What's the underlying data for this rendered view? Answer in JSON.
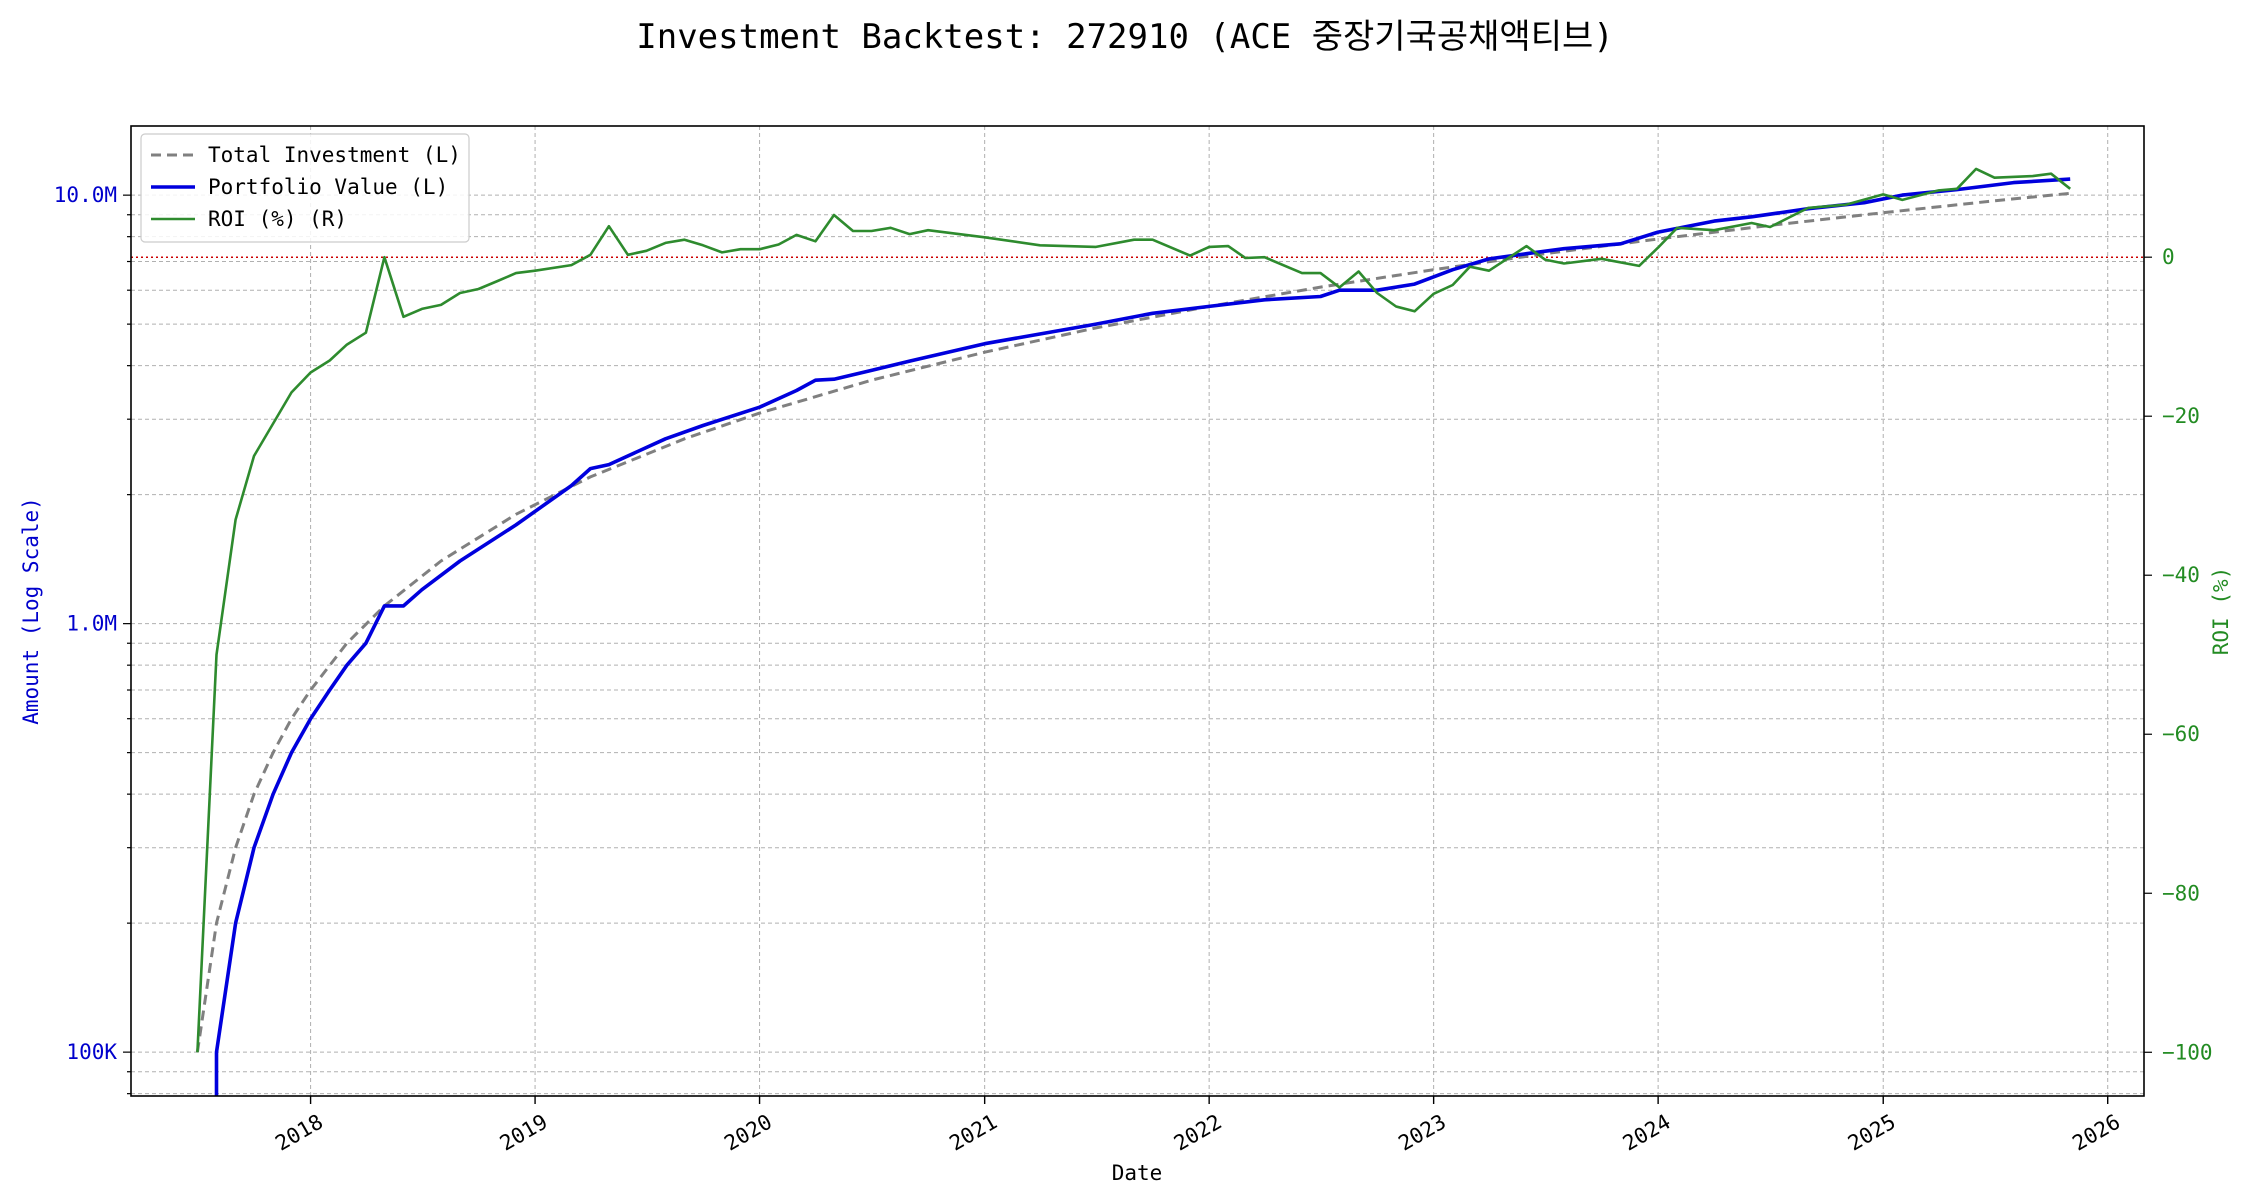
{
  "chart_data": {
    "type": "line",
    "title": "Investment Backtest: 272910 (ACE 중장기국공채액티브)",
    "xlabel": "Date",
    "ylabel_left": "Amount (Log Scale)",
    "ylabel_right": "ROI (%)",
    "left_scale": "log",
    "xlim": [
      "2017-03-15",
      "2026-03-01"
    ],
    "ylim_left": [
      79000,
      14500000
    ],
    "ylim_right": [
      -105.5,
      16.5
    ],
    "x_ticks": [
      "2018",
      "2019",
      "2020",
      "2021",
      "2022",
      "2023",
      "2024",
      "2025",
      "2026"
    ],
    "y_ticks_left": [
      {
        "value": 100000,
        "label": "100K"
      },
      {
        "value": 1000000,
        "label": "1.0M"
      },
      {
        "value": 10000000,
        "label": "10.0M"
      }
    ],
    "y_ticks_right": [
      0,
      -20,
      -40,
      -60,
      -80,
      -100
    ],
    "grid": true,
    "legend_position": "top-left",
    "colors": {
      "total_investment": "#808080",
      "portfolio_value": "#0000dd",
      "roi": "#2e8b2e",
      "zero_line": "#cc0000",
      "left_axis": "#0000cc",
      "right_axis": "#228b22"
    },
    "legend": [
      "Total Investment (L)",
      "Portfolio Value (L)",
      "ROI (%) (R)"
    ],
    "series": [
      {
        "name": "Total Investment (L)",
        "axis": "left",
        "style": "dashed",
        "points": [
          [
            "2017-07-01",
            100000
          ],
          [
            "2017-08-01",
            200000
          ],
          [
            "2017-09-01",
            300000
          ],
          [
            "2017-10-01",
            400000
          ],
          [
            "2017-11-01",
            500000
          ],
          [
            "2017-12-01",
            600000
          ],
          [
            "2018-01-01",
            700000
          ],
          [
            "2018-03-01",
            900000
          ],
          [
            "2018-05-01",
            1100000
          ],
          [
            "2018-08-01",
            1400000
          ],
          [
            "2018-12-01",
            1800000
          ],
          [
            "2019-04-01",
            2200000
          ],
          [
            "2019-09-01",
            2700000
          ],
          [
            "2020-01-01",
            3100000
          ],
          [
            "2020-07-01",
            3700000
          ],
          [
            "2021-01-01",
            4300000
          ],
          [
            "2021-07-01",
            4900000
          ],
          [
            "2022-01-01",
            5500000
          ],
          [
            "2022-07-01",
            6100000
          ],
          [
            "2023-01-01",
            6700000
          ],
          [
            "2023-07-01",
            7300000
          ],
          [
            "2024-01-01",
            7900000
          ],
          [
            "2024-07-01",
            8500000
          ],
          [
            "2025-01-01",
            9100000
          ],
          [
            "2025-07-01",
            9700000
          ],
          [
            "2025-11-01",
            10100000
          ]
        ]
      },
      {
        "name": "Portfolio Value (L)",
        "axis": "left",
        "style": "solid",
        "points": [
          [
            "2017-08-01",
            50000
          ],
          [
            "2017-08-01",
            100000
          ],
          [
            "2017-09-01",
            200000
          ],
          [
            "2017-10-01",
            300000
          ],
          [
            "2017-11-01",
            400000
          ],
          [
            "2017-12-01",
            500000
          ],
          [
            "2018-01-01",
            600000
          ],
          [
            "2018-02-01",
            700000
          ],
          [
            "2018-03-01",
            800000
          ],
          [
            "2018-04-01",
            900000
          ],
          [
            "2018-05-01",
            1100000
          ],
          [
            "2018-06-01",
            1100000
          ],
          [
            "2018-07-01",
            1200000
          ],
          [
            "2018-09-01",
            1400000
          ],
          [
            "2018-12-01",
            1700000
          ],
          [
            "2019-03-01",
            2100000
          ],
          [
            "2019-04-01",
            2300000
          ],
          [
            "2019-05-01",
            2350000
          ],
          [
            "2019-08-01",
            2700000
          ],
          [
            "2019-10-01",
            2900000
          ],
          [
            "2020-01-01",
            3200000
          ],
          [
            "2020-03-01",
            3500000
          ],
          [
            "2020-04-01",
            3700000
          ],
          [
            "2020-05-01",
            3720000
          ],
          [
            "2020-07-01",
            3900000
          ],
          [
            "2020-09-01",
            4100000
          ],
          [
            "2021-01-01",
            4500000
          ],
          [
            "2021-07-01",
            5000000
          ],
          [
            "2021-10-01",
            5300000
          ],
          [
            "2022-01-01",
            5500000
          ],
          [
            "2022-04-01",
            5700000
          ],
          [
            "2022-07-01",
            5800000
          ],
          [
            "2022-08-01",
            6000000
          ],
          [
            "2022-10-01",
            6000000
          ],
          [
            "2022-12-01",
            6200000
          ],
          [
            "2023-02-01",
            6700000
          ],
          [
            "2023-04-01",
            7100000
          ],
          [
            "2023-06-01",
            7300000
          ],
          [
            "2023-08-01",
            7500000
          ],
          [
            "2023-11-01",
            7700000
          ],
          [
            "2024-01-01",
            8200000
          ],
          [
            "2024-04-01",
            8700000
          ],
          [
            "2024-06-01",
            8900000
          ],
          [
            "2024-09-01",
            9300000
          ],
          [
            "2024-12-01",
            9600000
          ],
          [
            "2025-02-01",
            10000000
          ],
          [
            "2025-05-01",
            10300000
          ],
          [
            "2025-08-01",
            10700000
          ],
          [
            "2025-11-01",
            10900000
          ]
        ]
      },
      {
        "name": "ROI (%) (R)",
        "axis": "right",
        "style": "solid",
        "points": [
          [
            "2017-07-01",
            -100
          ],
          [
            "2017-08-01",
            -50
          ],
          [
            "2017-09-01",
            -33
          ],
          [
            "2017-10-01",
            -25
          ],
          [
            "2017-12-01",
            -17
          ],
          [
            "2018-01-01",
            -14.5
          ],
          [
            "2018-02-01",
            -13
          ],
          [
            "2018-03-01",
            -11
          ],
          [
            "2018-04-01",
            -9.5
          ],
          [
            "2018-05-01",
            0
          ],
          [
            "2018-06-01",
            -7.5
          ],
          [
            "2018-07-01",
            -6.5
          ],
          [
            "2018-08-01",
            -6
          ],
          [
            "2018-09-01",
            -4.5
          ],
          [
            "2018-10-01",
            -4
          ],
          [
            "2018-11-01",
            -3
          ],
          [
            "2018-12-01",
            -2
          ],
          [
            "2019-01-01",
            -1.7
          ],
          [
            "2019-03-01",
            -1
          ],
          [
            "2019-04-01",
            0.3
          ],
          [
            "2019-05-01",
            3.9
          ],
          [
            "2019-06-01",
            0.3
          ],
          [
            "2019-07-01",
            0.8
          ],
          [
            "2019-08-01",
            1.8
          ],
          [
            "2019-09-01",
            2.2
          ],
          [
            "2019-10-01",
            1.5
          ],
          [
            "2019-11-01",
            0.6
          ],
          [
            "2019-12-01",
            1
          ],
          [
            "2020-01-01",
            1
          ],
          [
            "2020-02-01",
            1.6
          ],
          [
            "2020-03-01",
            2.8
          ],
          [
            "2020-04-01",
            2
          ],
          [
            "2020-05-01",
            5.3
          ],
          [
            "2020-06-01",
            3.3
          ],
          [
            "2020-07-01",
            3.3
          ],
          [
            "2020-08-01",
            3.7
          ],
          [
            "2020-09-01",
            2.9
          ],
          [
            "2020-10-01",
            3.4
          ],
          [
            "2021-01-01",
            2.5
          ],
          [
            "2021-04-01",
            1.5
          ],
          [
            "2021-07-01",
            1.3
          ],
          [
            "2021-09-01",
            2.2
          ],
          [
            "2021-10-01",
            2.2
          ],
          [
            "2021-12-01",
            0.2
          ],
          [
            "2022-01-01",
            1.3
          ],
          [
            "2022-02-01",
            1.4
          ],
          [
            "2022-03-01",
            -0.1
          ],
          [
            "2022-04-01",
            0
          ],
          [
            "2022-06-01",
            -2
          ],
          [
            "2022-07-01",
            -2
          ],
          [
            "2022-08-01",
            -3.8
          ],
          [
            "2022-09-01",
            -1.8
          ],
          [
            "2022-10-01",
            -4.5
          ],
          [
            "2022-11-01",
            -6.2
          ],
          [
            "2022-12-01",
            -6.8
          ],
          [
            "2023-01-01",
            -4.6
          ],
          [
            "2023-02-01",
            -3.5
          ],
          [
            "2023-03-01",
            -1.2
          ],
          [
            "2023-04-01",
            -1.7
          ],
          [
            "2023-06-01",
            1.4
          ],
          [
            "2023-07-01",
            -0.3
          ],
          [
            "2023-08-01",
            -0.8
          ],
          [
            "2023-10-01",
            -0.2
          ],
          [
            "2023-12-01",
            -1.1
          ],
          [
            "2024-01-01",
            1.2
          ],
          [
            "2024-02-01",
            3.7
          ],
          [
            "2024-04-01",
            3.4
          ],
          [
            "2024-06-01",
            4.3
          ],
          [
            "2024-07-01",
            3.8
          ],
          [
            "2024-09-01",
            6.2
          ],
          [
            "2024-11-01",
            6.6
          ],
          [
            "2025-01-01",
            7.9
          ],
          [
            "2025-02-01",
            7.2
          ],
          [
            "2025-04-01",
            8.4
          ],
          [
            "2025-05-01",
            8.6
          ],
          [
            "2025-06-01",
            11.1
          ],
          [
            "2025-07-01",
            10
          ],
          [
            "2025-09-01",
            10.2
          ],
          [
            "2025-10-01",
            10.5
          ],
          [
            "2025-11-01",
            8.6
          ]
        ]
      }
    ]
  }
}
